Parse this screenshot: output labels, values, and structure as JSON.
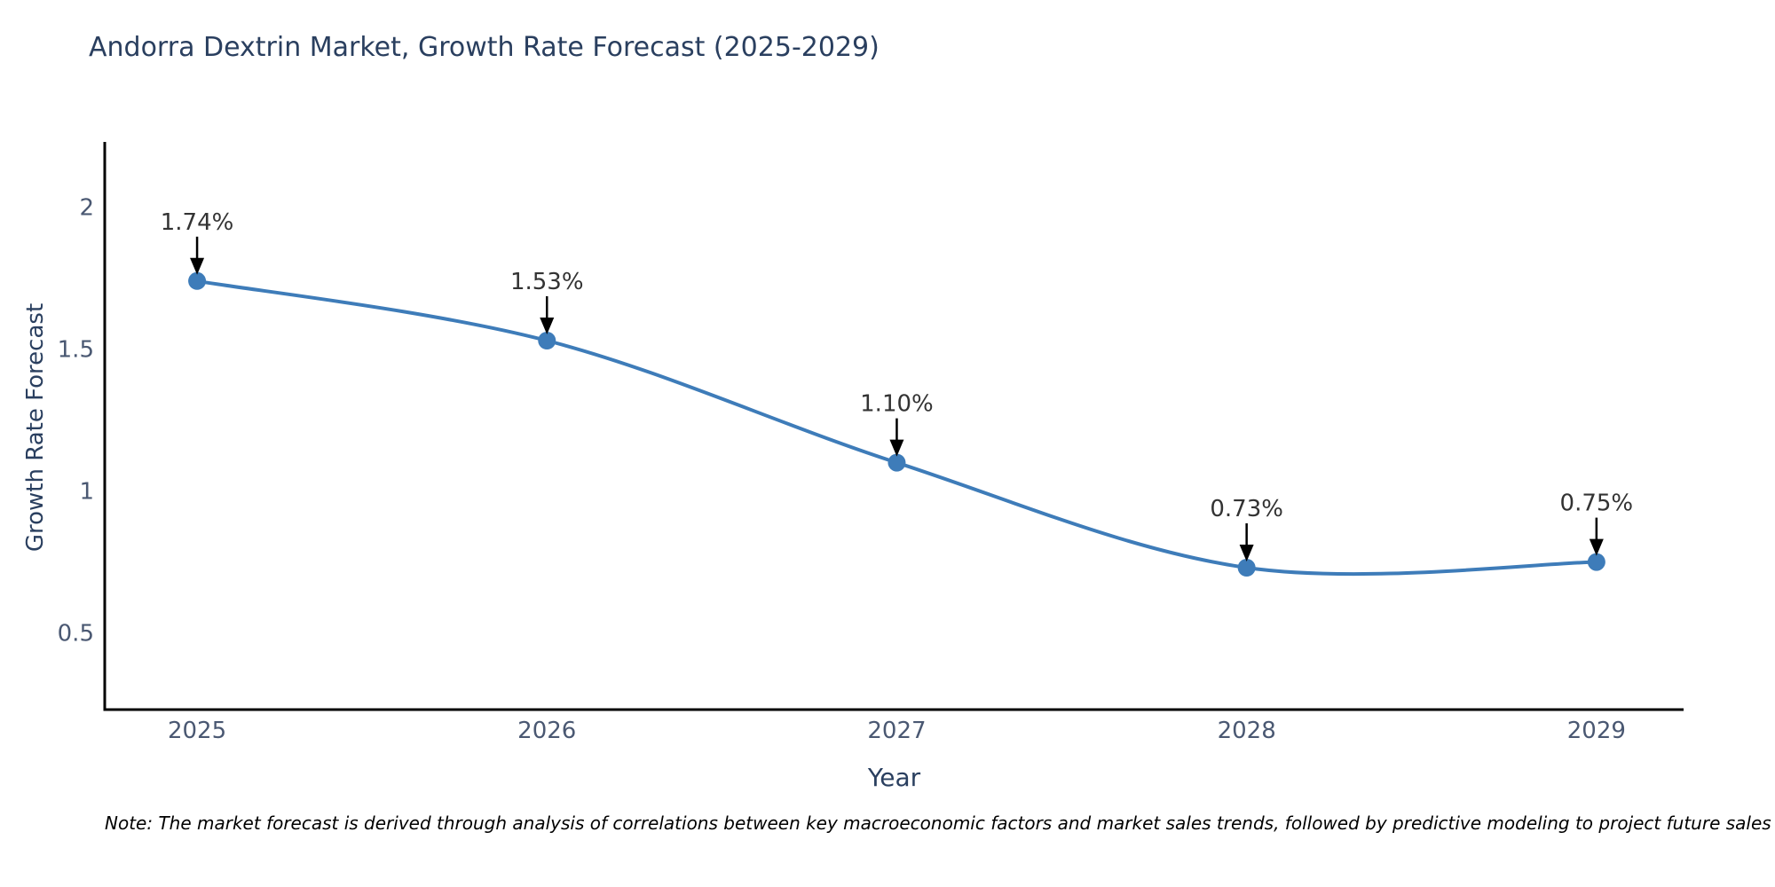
{
  "note": "Note: The market forecast is derived through analysis of correlations between key macroeconomic factors and market sales trends, followed by predictive modeling to project future sales",
  "colors": {
    "series_blue": "#3E7CB9",
    "title_text": "#2a3f5f",
    "tick_text": "#4a5872",
    "annotation_text": "#333333",
    "arrow": "#000000",
    "axis_line": "#000000",
    "background": "#ffffff"
  },
  "chart_data": {
    "type": "line",
    "title": "Andorra Dextrin Market, Growth Rate Forecast (2025-2029)",
    "xlabel": "Year",
    "ylabel": "Growth Rate Forecast",
    "x": [
      2025,
      2026,
      2027,
      2028,
      2029
    ],
    "x_tick_labels": [
      "2025",
      "2026",
      "2027",
      "2028",
      "2029"
    ],
    "values": [
      1.74,
      1.53,
      1.1,
      0.73,
      0.75
    ],
    "point_labels": [
      "1.74%",
      "1.53%",
      "1.10%",
      "0.73%",
      "0.75%"
    ],
    "y_ticks": [
      0.5,
      1,
      1.5,
      2
    ],
    "y_tick_labels": [
      "0.5",
      "1",
      "1.5",
      "2"
    ],
    "ylim": [
      0.23,
      2.23
    ],
    "xlim": [
      2024.736,
      2029.249
    ],
    "grid": false,
    "legend": "none",
    "line_shape": "spline",
    "marker": "circle"
  }
}
